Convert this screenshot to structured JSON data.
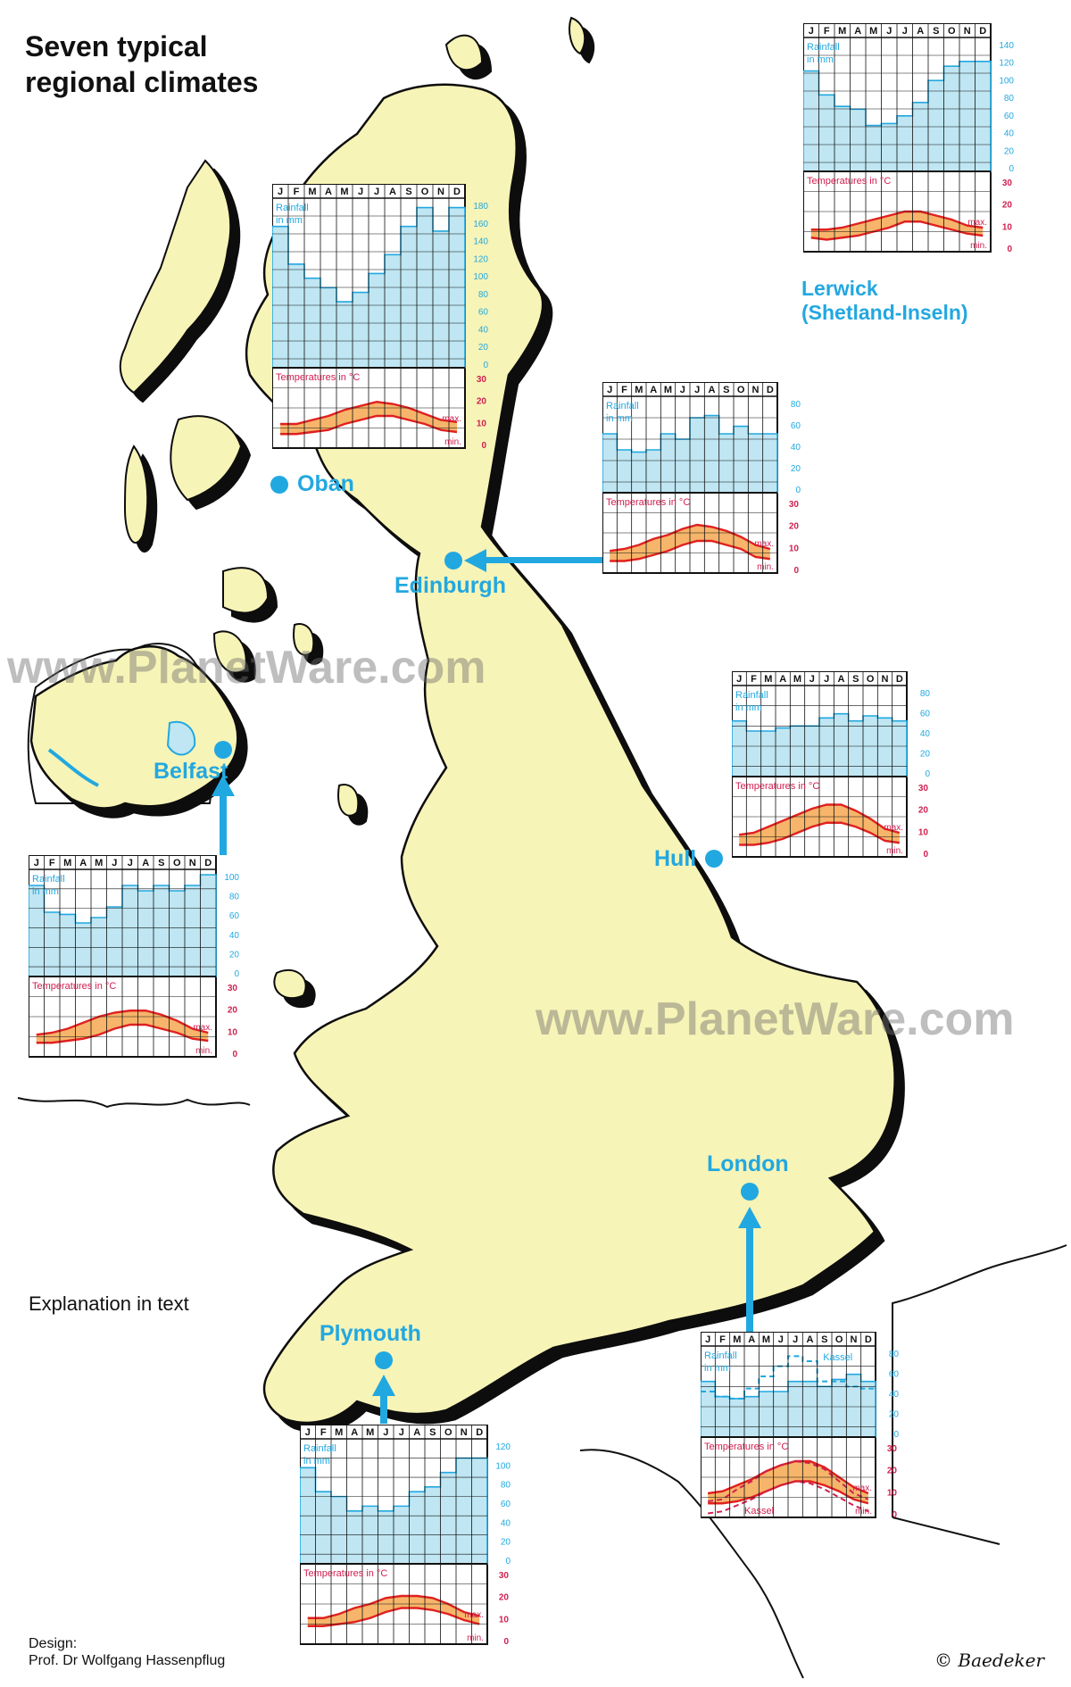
{
  "title_lines": [
    "Seven typical",
    "regional climates"
  ],
  "explanation": "Explanation in text",
  "design_credit": [
    "Design:",
    "Prof. Dr Wolfgang Hassenpflug"
  ],
  "copyright": "© Baedeker",
  "watermark": "www.PlanetWare.com",
  "colors": {
    "land": "#f7f4b7",
    "shadow": "#111111",
    "accent": "#22a8e0",
    "rain_fill": "#bfe6f2",
    "temp_band": "#f6b56a",
    "temp_line": "#e02020",
    "label_red": "#d02050"
  },
  "labels": {
    "months": [
      "J",
      "F",
      "M",
      "A",
      "M",
      "J",
      "J",
      "A",
      "S",
      "O",
      "N",
      "D"
    ],
    "rainfall": [
      "Rainfall",
      "in mm"
    ],
    "temperatures": "Temperatures in °C",
    "max": "max.",
    "min": "min.",
    "temp_ticks": [
      "30",
      "20",
      "10",
      "0"
    ]
  },
  "cities": {
    "oban": "Oban",
    "edinburgh": "Edinburgh",
    "belfast": "Belfast",
    "hull": "Hull",
    "london": "London",
    "plymouth": "Plymouth",
    "lerwick": [
      "Lerwick",
      "(Shetland-Inseln)"
    ]
  },
  "chart_data": [
    {
      "type": "climate",
      "station": "Lerwick",
      "rain_ticks": [
        "140",
        "120",
        "100",
        "80",
        "60",
        "40",
        "20",
        "0"
      ],
      "rain_max": 140,
      "rainfall": [
        105,
        80,
        68,
        65,
        48,
        50,
        58,
        72,
        95,
        110,
        115,
        115
      ],
      "temp_max": [
        6,
        6,
        7,
        9,
        11,
        13,
        15,
        15,
        13,
        11,
        8,
        7
      ],
      "temp_min": [
        2,
        1,
        2,
        3,
        5,
        7,
        10,
        10,
        8,
        6,
        4,
        3
      ]
    },
    {
      "type": "climate",
      "station": "Oban",
      "rain_ticks": [
        "180",
        "160",
        "140",
        "120",
        "100",
        "80",
        "60",
        "40",
        "20",
        "0"
      ],
      "rain_max": 180,
      "rainfall": [
        150,
        110,
        95,
        85,
        70,
        80,
        100,
        120,
        150,
        170,
        145,
        170
      ],
      "temp_max": [
        7,
        7,
        9,
        11,
        14,
        16,
        18,
        17,
        15,
        12,
        9,
        8
      ],
      "temp_min": [
        2,
        2,
        3,
        4,
        7,
        9,
        11,
        11,
        9,
        7,
        4,
        3
      ]
    },
    {
      "type": "climate",
      "station": "Edinburgh",
      "rain_ticks": [
        "80",
        "60",
        "40",
        "20",
        "0"
      ],
      "rain_max": 90,
      "rainfall": [
        55,
        40,
        38,
        40,
        55,
        50,
        70,
        72,
        55,
        62,
        55,
        55
      ],
      "temp_max": [
        6,
        7,
        9,
        12,
        14,
        17,
        19,
        18,
        16,
        13,
        9,
        7
      ],
      "temp_min": [
        1,
        1,
        2,
        4,
        6,
        9,
        11,
        11,
        9,
        7,
        3,
        2
      ]
    },
    {
      "type": "climate",
      "station": "Belfast",
      "rain_ticks": [
        "100",
        "80",
        "60",
        "40",
        "20",
        "0"
      ],
      "rain_max": 100,
      "rainfall": [
        85,
        60,
        58,
        50,
        55,
        65,
        85,
        80,
        85,
        80,
        85,
        95
      ],
      "temp_max": [
        6,
        7,
        9,
        12,
        15,
        17,
        18,
        18,
        16,
        13,
        9,
        7
      ],
      "temp_min": [
        2,
        2,
        3,
        4,
        6,
        9,
        11,
        11,
        9,
        7,
        4,
        3
      ]
    },
    {
      "type": "climate",
      "station": "Hull",
      "rain_ticks": [
        "80",
        "60",
        "40",
        "20",
        "0"
      ],
      "rain_max": 90,
      "rainfall": [
        55,
        45,
        45,
        48,
        50,
        50,
        58,
        62,
        55,
        60,
        58,
        55
      ],
      "temp_max": [
        6,
        7,
        10,
        13,
        16,
        19,
        21,
        21,
        18,
        14,
        9,
        7
      ],
      "temp_min": [
        1,
        1,
        2,
        4,
        7,
        10,
        12,
        12,
        10,
        7,
        3,
        2
      ]
    },
    {
      "type": "climate",
      "station": "London",
      "rain_ticks": [
        "80",
        "60",
        "40",
        "20",
        "0"
      ],
      "rain_max": 90,
      "rainfall": [
        55,
        40,
        38,
        40,
        45,
        45,
        55,
        55,
        50,
        57,
        62,
        55
      ],
      "temp_max": [
        7,
        8,
        11,
        14,
        18,
        21,
        23,
        23,
        20,
        15,
        10,
        7
      ],
      "temp_min": [
        2,
        2,
        3,
        5,
        8,
        11,
        13,
        13,
        11,
        8,
        4,
        2
      ],
      "comparison": {
        "name": "Kassel",
        "rainfall": [
          45,
          40,
          38,
          48,
          60,
          70,
          80,
          75,
          55,
          55,
          50,
          48
        ],
        "temp_max": [
          3,
          4,
          9,
          13,
          18,
          21,
          23,
          22,
          19,
          13,
          7,
          4
        ],
        "temp_min": [
          -3,
          -2,
          1,
          4,
          8,
          11,
          13,
          12,
          9,
          5,
          1,
          -2
        ]
      }
    },
    {
      "type": "climate",
      "station": "Plymouth",
      "rain_ticks": [
        "120",
        "100",
        "80",
        "60",
        "40",
        "20",
        "0"
      ],
      "rain_max": 130,
      "rainfall": [
        100,
        75,
        70,
        55,
        60,
        55,
        60,
        75,
        80,
        95,
        110,
        110
      ],
      "temp_max": [
        8,
        8,
        10,
        13,
        15,
        18,
        19,
        19,
        18,
        15,
        11,
        9
      ],
      "temp_min": [
        4,
        4,
        5,
        6,
        8,
        11,
        13,
        13,
        12,
        10,
        7,
        5
      ]
    }
  ]
}
